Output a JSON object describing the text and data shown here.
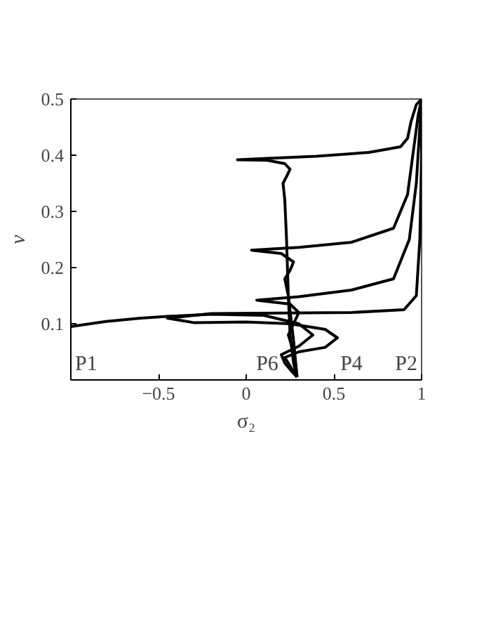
{
  "chart_data": {
    "type": "line",
    "xlabel": "σ₂",
    "ylabel": "v",
    "xlim": [
      -1,
      1
    ],
    "ylim": [
      0,
      0.5
    ],
    "xticks": [
      -0.5,
      0,
      0.5,
      1
    ],
    "yticks": [
      0.1,
      0.2,
      0.3,
      0.4,
      0.5
    ],
    "grid": false,
    "series": [
      {
        "color": "#000000",
        "x": [
          1,
          0.97,
          0.94,
          0.92,
          0.88,
          0.7,
          0.4,
          0.1,
          -0.05,
          0.12,
          0.22,
          0.25,
          0.23,
          0.21,
          0.22,
          0.23,
          0.24,
          0.25,
          0.27,
          0.29
        ],
        "values": [
          0.5,
          0.49,
          0.46,
          0.43,
          0.415,
          0.405,
          0.398,
          0.394,
          0.392,
          0.391,
          0.385,
          0.375,
          0.362,
          0.35,
          0.32,
          0.25,
          0.15,
          0.08,
          0.03,
          0.005
        ]
      },
      {
        "color": "#000000",
        "x": [
          1,
          0.98,
          0.95,
          0.92,
          0.84,
          0.6,
          0.3,
          0.03,
          0.2,
          0.27,
          0.25,
          0.22,
          0.24,
          0.27,
          0.29
        ],
        "values": [
          0.5,
          0.47,
          0.4,
          0.33,
          0.27,
          0.245,
          0.236,
          0.231,
          0.225,
          0.21,
          0.195,
          0.18,
          0.15,
          0.07,
          0.005
        ]
      },
      {
        "color": "#000000",
        "x": [
          1,
          0.99,
          0.97,
          0.93,
          0.84,
          0.6,
          0.3,
          0.06,
          0.25,
          0.3,
          0.27,
          0.24,
          0.26,
          0.28,
          0.29
        ],
        "values": [
          0.5,
          0.45,
          0.35,
          0.25,
          0.18,
          0.16,
          0.148,
          0.142,
          0.135,
          0.12,
          0.1,
          0.08,
          0.06,
          0.03,
          0.005
        ]
      },
      {
        "color": "#000000",
        "x": [
          1,
          1,
          0.99,
          0.97,
          0.9,
          0.6,
          0.2,
          -0.2,
          -0.45,
          -0.3,
          0,
          0.25,
          0.45,
          0.52,
          0.45,
          0.3,
          0.22,
          0.26,
          0.29
        ],
        "values": [
          0.5,
          0.4,
          0.25,
          0.15,
          0.125,
          0.12,
          0.119,
          0.118,
          0.11,
          0.102,
          0.103,
          0.1,
          0.09,
          0.075,
          0.058,
          0.05,
          0.04,
          0.02,
          0.005
        ]
      },
      {
        "color": "#000000",
        "x": [
          -1,
          -0.8,
          -0.6,
          -0.45,
          -0.2,
          0.1,
          0.3,
          0.38,
          0.3,
          0.2,
          0.22,
          0.26,
          0.29
        ],
        "values": [
          0.095,
          0.104,
          0.11,
          0.113,
          0.117,
          0.115,
          0.1,
          0.08,
          0.06,
          0.045,
          0.03,
          0.015,
          0.005
        ]
      }
    ],
    "annotations": [
      "P1",
      "P6",
      "P4",
      "P2"
    ]
  }
}
